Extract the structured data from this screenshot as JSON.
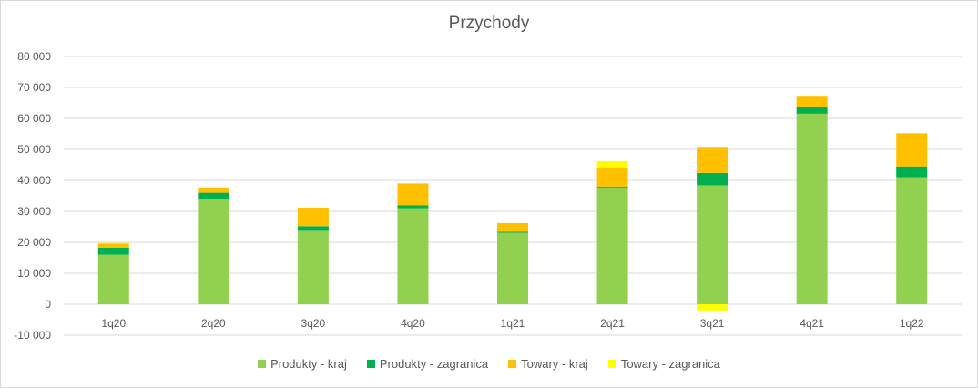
{
  "chart_data": {
    "type": "bar",
    "stacked": true,
    "title": "Przychody",
    "xlabel": "",
    "ylabel": "",
    "ylim": [
      -10000,
      80000
    ],
    "yticks": [
      -10000,
      0,
      10000,
      20000,
      30000,
      40000,
      50000,
      60000,
      70000,
      80000
    ],
    "ytick_labels": [
      "-10 000",
      "0",
      "10 000",
      "20 000",
      "30 000",
      "40 000",
      "50 000",
      "60 000",
      "70 000",
      "80 000"
    ],
    "grid": true,
    "legend_position": "bottom",
    "categories": [
      "1q20",
      "2q20",
      "3q20",
      "4q20",
      "1q21",
      "2q21",
      "3q21",
      "4q21",
      "1q22"
    ],
    "series": [
      {
        "name": "Produkty - kraj",
        "color": "#92d050",
        "values": [
          16000,
          33800,
          23700,
          31000,
          23100,
          37700,
          38400,
          61500,
          41000
        ]
      },
      {
        "name": "Produkty - zagranica",
        "color": "#00b050",
        "values": [
          2300,
          2200,
          1500,
          1000,
          300,
          300,
          4000,
          2300,
          3500
        ]
      },
      {
        "name": "Towary - kraj",
        "color": "#ffc000",
        "values": [
          1300,
          1700,
          6000,
          7000,
          2800,
          6200,
          8400,
          3500,
          10700
        ]
      },
      {
        "name": "Towary - zagranica",
        "color": "#ffff00",
        "values": [
          200,
          0,
          0,
          0,
          0,
          2000,
          -2000,
          0,
          0
        ]
      }
    ]
  }
}
